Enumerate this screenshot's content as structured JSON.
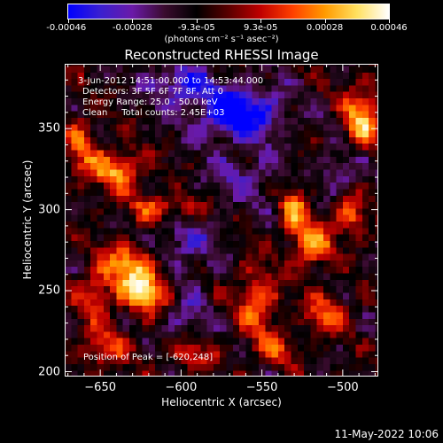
{
  "colorbar": {
    "tick_labels": [
      "-0.00046",
      "-0.00028",
      "-9.3e-05",
      "9.3e-05",
      "0.00028",
      "0.00046"
    ],
    "units": "(photons cm⁻² s⁻¹ asec⁻²)",
    "colormap_stops": [
      "#0000ff",
      "#3a1fd0",
      "#6a1aa8",
      "#3a0b2e",
      "#000000",
      "#5a0000",
      "#c00000",
      "#ff4000",
      "#ff9a00",
      "#ffe060",
      "#ffffff"
    ]
  },
  "chart_data": {
    "type": "heatmap",
    "title": "Reconstructed RHESSI Image",
    "xlabel": "Heliocentric X (arcsec)",
    "ylabel": "Heliocentric Y (arcsec)",
    "xlim": [
      -672,
      -478
    ],
    "ylim": [
      197,
      390
    ],
    "x_ticks": [
      -650,
      -600,
      -550,
      -500
    ],
    "y_ticks": [
      200,
      250,
      300,
      350
    ],
    "x_tick_labels": [
      "−650",
      "−600",
      "−550",
      "−500"
    ],
    "y_tick_labels": [
      "200",
      "250",
      "300",
      "350"
    ],
    "value_range": [
      -0.00046,
      0.00046
    ],
    "grid": false,
    "annotations": [
      "3-Jun-2012 14:51:00.000 to 14:53:44.000",
      "Detectors: 3F 5F 6F 7F 8F, Att 0",
      "Energy Range: 25.0 - 50.0 keV",
      "Clean     Total counts: 2.45E+03"
    ],
    "peak_label": "Position of Peak = [-620,248]",
    "peak": {
      "x": -620,
      "y": 248
    },
    "blobs": [
      {
        "x": -622,
        "y": 250,
        "amp": 0.00046,
        "sx": 12,
        "sy": 10
      },
      {
        "x": -632,
        "y": 268,
        "amp": 0.00034,
        "sx": 12,
        "sy": 9
      },
      {
        "x": -654,
        "y": 248,
        "amp": 0.00024,
        "sx": 8,
        "sy": 12
      },
      {
        "x": -648,
        "y": 214,
        "amp": 0.00026,
        "sx": 10,
        "sy": 8
      },
      {
        "x": -610,
        "y": 301,
        "amp": 0.0003,
        "sx": 16,
        "sy": 6
      },
      {
        "x": -640,
        "y": 325,
        "amp": 0.00036,
        "sx": 12,
        "sy": 9
      },
      {
        "x": -662,
        "y": 340,
        "amp": 0.00024,
        "sx": 7,
        "sy": 14
      },
      {
        "x": -530,
        "y": 300,
        "amp": 0.00032,
        "sx": 6,
        "sy": 13
      },
      {
        "x": -518,
        "y": 278,
        "amp": 0.00036,
        "sx": 8,
        "sy": 10
      },
      {
        "x": -552,
        "y": 244,
        "amp": 0.0003,
        "sx": 9,
        "sy": 16
      },
      {
        "x": -510,
        "y": 236,
        "amp": 0.00026,
        "sx": 10,
        "sy": 9
      },
      {
        "x": -496,
        "y": 298,
        "amp": 0.00034,
        "sx": 7,
        "sy": 10
      },
      {
        "x": -488,
        "y": 356,
        "amp": 0.0004,
        "sx": 8,
        "sy": 14
      },
      {
        "x": -596,
        "y": 212,
        "amp": 0.00022,
        "sx": 12,
        "sy": 7
      },
      {
        "x": -540,
        "y": 214,
        "amp": 0.0002,
        "sx": 9,
        "sy": 7
      },
      {
        "x": -565,
        "y": 360,
        "amp": -0.00046,
        "sx": 18,
        "sy": 11
      },
      {
        "x": -600,
        "y": 378,
        "amp": -0.0003,
        "sx": 14,
        "sy": 8
      },
      {
        "x": -600,
        "y": 278,
        "amp": -0.0002,
        "sx": 14,
        "sy": 14
      },
      {
        "x": -560,
        "y": 320,
        "amp": -0.00016,
        "sx": 18,
        "sy": 12
      },
      {
        "x": -600,
        "y": 236,
        "amp": -0.00018,
        "sx": 10,
        "sy": 12
      },
      {
        "x": -500,
        "y": 322,
        "amp": -0.00018,
        "sx": 10,
        "sy": 12
      }
    ]
  },
  "footer": {
    "timestamp": "11-May-2022 10:06"
  }
}
